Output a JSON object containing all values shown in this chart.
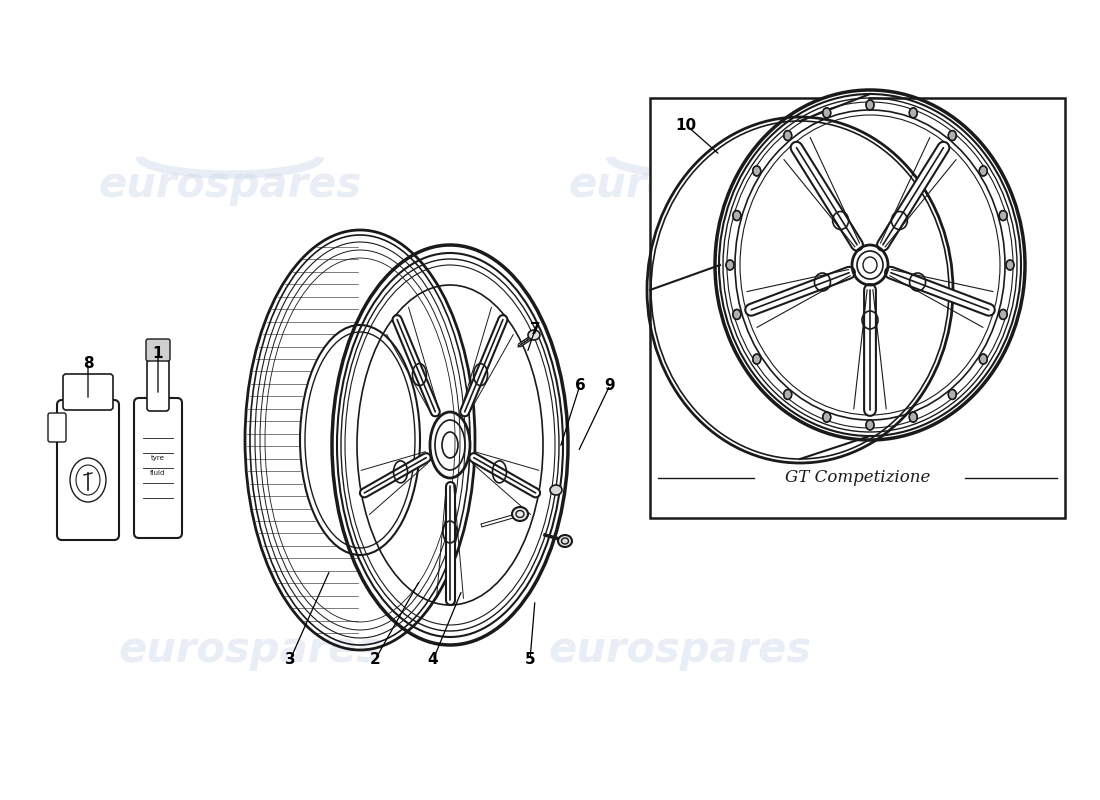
{
  "background_color": "#ffffff",
  "line_color": "#1a1a1a",
  "watermark_text": "eurospares",
  "watermark_color": "#c8d4e8",
  "watermark_alpha": 0.4,
  "gt_label": "GT Competizione",
  "figsize": [
    11.0,
    8.0
  ],
  "dpi": 100
}
